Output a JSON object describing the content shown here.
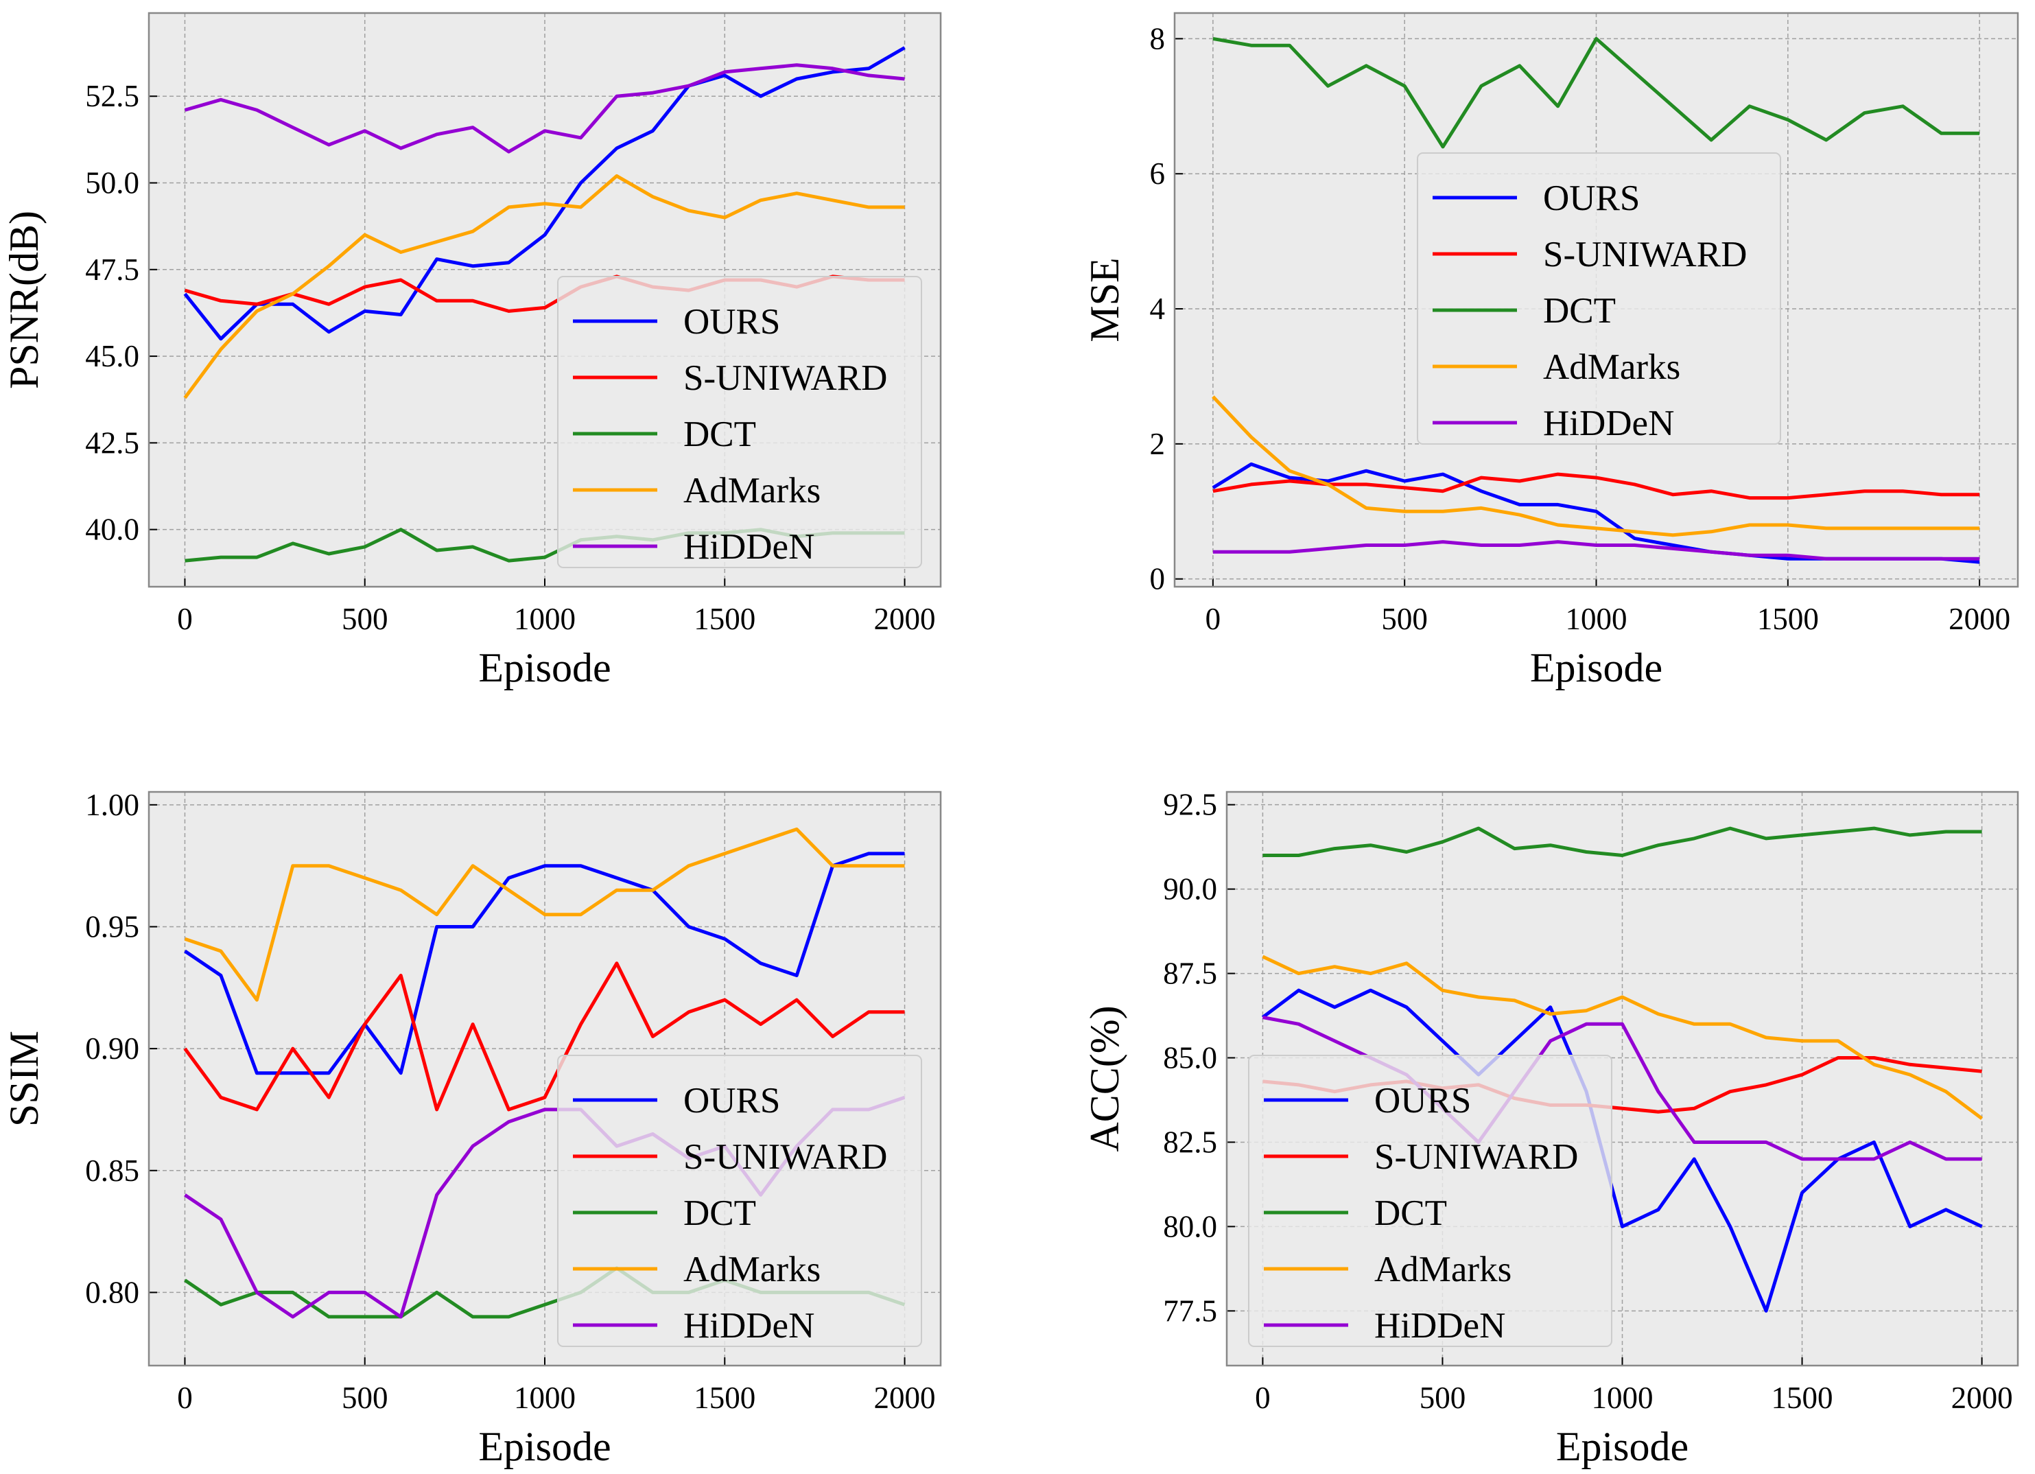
{
  "chart_data": [
    {
      "type": "line",
      "title": "",
      "xlabel": "Episode",
      "ylabel": "PSNR(dB)",
      "xlim": [
        -100,
        2100
      ],
      "ylim": [
        38.35,
        54.9
      ],
      "xticks": [
        0,
        500,
        1000,
        1500,
        2000
      ],
      "yticks": [
        40.0,
        42.5,
        45.0,
        47.5,
        50.0,
        52.5
      ],
      "ytick_labels": [
        "40.0",
        "42.5",
        "45.0",
        "47.5",
        "50.0",
        "52.5"
      ],
      "grid": true,
      "legend_placement": "lower-right",
      "x": [
        0,
        100,
        200,
        300,
        400,
        500,
        600,
        700,
        800,
        900,
        1000,
        1100,
        1200,
        1300,
        1400,
        1500,
        1600,
        1700,
        1800,
        1900,
        2000
      ],
      "series": [
        {
          "name": "OURS",
          "color": "#0000ff",
          "values": [
            46.8,
            45.5,
            46.5,
            46.5,
            45.7,
            46.3,
            46.2,
            47.8,
            47.6,
            47.7,
            48.5,
            50.0,
            51.0,
            51.5,
            52.8,
            53.1,
            52.5,
            53.0,
            53.2,
            53.3,
            53.9
          ]
        },
        {
          "name": "S-UNIWARD",
          "color": "#ff0000",
          "values": [
            46.9,
            46.6,
            46.5,
            46.8,
            46.5,
            47.0,
            47.2,
            46.6,
            46.6,
            46.3,
            46.4,
            47.0,
            47.3,
            47.0,
            46.9,
            47.2,
            47.2,
            47.0,
            47.3,
            47.2,
            47.2
          ]
        },
        {
          "name": "DCT",
          "color": "#228b22",
          "values": [
            39.1,
            39.2,
            39.2,
            39.6,
            39.3,
            39.5,
            40.0,
            39.4,
            39.5,
            39.1,
            39.2,
            39.7,
            39.8,
            39.7,
            39.9,
            39.9,
            40.0,
            39.8,
            39.9,
            39.9,
            39.9
          ]
        },
        {
          "name": "AdMarks",
          "color": "#ffa500",
          "values": [
            43.8,
            45.2,
            46.3,
            46.8,
            47.6,
            48.5,
            48.0,
            48.3,
            48.6,
            49.3,
            49.4,
            49.3,
            50.2,
            49.6,
            49.2,
            49.0,
            49.5,
            49.7,
            49.5,
            49.3,
            49.3
          ]
        },
        {
          "name": "HiDDeN",
          "color": "#9400d3",
          "values": [
            52.1,
            52.4,
            52.1,
            51.6,
            51.1,
            51.5,
            51.0,
            51.4,
            51.6,
            50.9,
            51.5,
            51.3,
            52.5,
            52.6,
            52.8,
            53.2,
            53.3,
            53.4,
            53.3,
            53.1,
            53.0
          ]
        }
      ]
    },
    {
      "type": "line",
      "title": "",
      "xlabel": "Episode",
      "ylabel": "MSE",
      "xlim": [
        -100,
        2100
      ],
      "ylim": [
        -0.115,
        8.38
      ],
      "xticks": [
        0,
        500,
        1000,
        1500,
        2000
      ],
      "yticks": [
        0,
        2,
        4,
        6,
        8
      ],
      "ytick_labels": [
        "0",
        "2",
        "4",
        "6",
        "8"
      ],
      "grid": true,
      "legend_placement": "center",
      "x": [
        0,
        100,
        200,
        300,
        400,
        500,
        600,
        700,
        800,
        900,
        1000,
        1100,
        1200,
        1300,
        1400,
        1500,
        1600,
        1700,
        1800,
        1900,
        2000
      ],
      "series": [
        {
          "name": "OURS",
          "color": "#0000ff",
          "values": [
            1.35,
            1.7,
            1.5,
            1.45,
            1.6,
            1.45,
            1.55,
            1.3,
            1.1,
            1.1,
            1.0,
            0.6,
            0.5,
            0.4,
            0.35,
            0.3,
            0.3,
            0.3,
            0.3,
            0.3,
            0.25
          ]
        },
        {
          "name": "S-UNIWARD",
          "color": "#ff0000",
          "values": [
            1.3,
            1.4,
            1.45,
            1.4,
            1.4,
            1.35,
            1.3,
            1.5,
            1.45,
            1.55,
            1.5,
            1.4,
            1.25,
            1.3,
            1.2,
            1.2,
            1.25,
            1.3,
            1.3,
            1.25,
            1.25
          ]
        },
        {
          "name": "DCT",
          "color": "#228b22",
          "values": [
            8.0,
            7.9,
            7.9,
            7.3,
            7.6,
            7.3,
            6.4,
            7.3,
            7.6,
            7.0,
            8.0,
            7.5,
            7.0,
            6.5,
            7.0,
            6.8,
            6.5,
            6.9,
            7.0,
            6.6,
            6.6
          ]
        },
        {
          "name": "AdMarks",
          "color": "#ffa500",
          "values": [
            2.7,
            2.1,
            1.6,
            1.4,
            1.05,
            1.0,
            1.0,
            1.05,
            0.95,
            0.8,
            0.75,
            0.7,
            0.65,
            0.7,
            0.8,
            0.8,
            0.75,
            0.75,
            0.75,
            0.75,
            0.75
          ]
        },
        {
          "name": "HiDDeN",
          "color": "#9400d3",
          "values": [
            0.4,
            0.4,
            0.4,
            0.45,
            0.5,
            0.5,
            0.55,
            0.5,
            0.5,
            0.55,
            0.5,
            0.5,
            0.45,
            0.4,
            0.35,
            0.35,
            0.3,
            0.3,
            0.3,
            0.3,
            0.3
          ]
        }
      ]
    },
    {
      "type": "line",
      "title": "",
      "xlabel": "Episode",
      "ylabel": "SSIM",
      "xlim": [
        -100,
        2100
      ],
      "ylim": [
        0.77,
        1.0053
      ],
      "xticks": [
        0,
        500,
        1000,
        1500,
        2000
      ],
      "yticks": [
        0.8,
        0.85,
        0.9,
        0.95,
        1.0
      ],
      "ytick_labels": [
        "0.80",
        "0.85",
        "0.90",
        "0.95",
        "1.00"
      ],
      "grid": true,
      "legend_placement": "lower-right",
      "x": [
        0,
        100,
        200,
        300,
        400,
        500,
        600,
        700,
        800,
        900,
        1000,
        1100,
        1200,
        1300,
        1400,
        1500,
        1600,
        1700,
        1800,
        1900,
        2000
      ],
      "series": [
        {
          "name": "OURS",
          "color": "#0000ff",
          "values": [
            0.94,
            0.93,
            0.89,
            0.89,
            0.89,
            0.91,
            0.89,
            0.95,
            0.95,
            0.97,
            0.975,
            0.975,
            0.97,
            0.965,
            0.95,
            0.945,
            0.935,
            0.93,
            0.975,
            0.98,
            0.98
          ]
        },
        {
          "name": "S-UNIWARD",
          "color": "#ff0000",
          "values": [
            0.9,
            0.88,
            0.875,
            0.9,
            0.88,
            0.91,
            0.93,
            0.875,
            0.91,
            0.875,
            0.88,
            0.91,
            0.935,
            0.905,
            0.915,
            0.92,
            0.91,
            0.92,
            0.905,
            0.915,
            0.915
          ]
        },
        {
          "name": "DCT",
          "color": "#228b22",
          "values": [
            0.805,
            0.795,
            0.8,
            0.8,
            0.79,
            0.79,
            0.79,
            0.8,
            0.79,
            0.79,
            0.795,
            0.8,
            0.81,
            0.8,
            0.8,
            0.805,
            0.8,
            0.8,
            0.8,
            0.8,
            0.795
          ]
        },
        {
          "name": "AdMarks",
          "color": "#ffa500",
          "values": [
            0.945,
            0.94,
            0.92,
            0.975,
            0.975,
            0.97,
            0.965,
            0.955,
            0.975,
            0.965,
            0.955,
            0.955,
            0.965,
            0.965,
            0.975,
            0.98,
            0.985,
            0.99,
            0.975,
            0.975,
            0.975
          ]
        },
        {
          "name": "HiDDeN",
          "color": "#9400d3",
          "values": [
            0.84,
            0.83,
            0.8,
            0.79,
            0.8,
            0.8,
            0.79,
            0.84,
            0.86,
            0.87,
            0.875,
            0.875,
            0.86,
            0.865,
            0.855,
            0.86,
            0.84,
            0.86,
            0.875,
            0.875,
            0.88
          ]
        }
      ]
    },
    {
      "type": "line",
      "title": "",
      "xlabel": "Episode",
      "ylabel": "ACC(%)",
      "xlim": [
        -100,
        2100
      ],
      "ylim": [
        75.88,
        92.88
      ],
      "xticks": [
        0,
        500,
        1000,
        1500,
        2000
      ],
      "yticks": [
        77.5,
        80.0,
        82.5,
        85.0,
        87.5,
        90.0,
        92.5
      ],
      "ytick_labels": [
        "77.5",
        "80.0",
        "82.5",
        "85.0",
        "87.5",
        "90.0",
        "92.5"
      ],
      "grid": true,
      "legend_placement": "lower-left",
      "x": [
        0,
        100,
        200,
        300,
        400,
        500,
        600,
        700,
        800,
        900,
        1000,
        1100,
        1200,
        1300,
        1400,
        1500,
        1600,
        1700,
        1800,
        1900,
        2000
      ],
      "series": [
        {
          "name": "OURS",
          "color": "#0000ff",
          "values": [
            86.2,
            87.0,
            86.5,
            87.0,
            86.5,
            85.5,
            84.5,
            85.5,
            86.5,
            84.0,
            80.0,
            80.5,
            82.0,
            80.0,
            77.5,
            81.0,
            82.0,
            82.5,
            80.0,
            80.5,
            80.0
          ]
        },
        {
          "name": "S-UNIWARD",
          "color": "#ff0000",
          "values": [
            84.3,
            84.2,
            84.0,
            84.2,
            84.3,
            84.1,
            84.2,
            83.8,
            83.6,
            83.6,
            83.5,
            83.4,
            83.5,
            84.0,
            84.2,
            84.5,
            85.0,
            85.0,
            84.8,
            84.7,
            84.6
          ]
        },
        {
          "name": "DCT",
          "color": "#228b22",
          "values": [
            91.0,
            91.0,
            91.2,
            91.3,
            91.1,
            91.4,
            91.8,
            91.2,
            91.3,
            91.1,
            91.0,
            91.3,
            91.5,
            91.8,
            91.5,
            91.6,
            91.7,
            91.8,
            91.6,
            91.7,
            91.7
          ]
        },
        {
          "name": "AdMarks",
          "color": "#ffa500",
          "values": [
            88.0,
            87.5,
            87.7,
            87.5,
            87.8,
            87.0,
            86.8,
            86.7,
            86.3,
            86.4,
            86.8,
            86.3,
            86.0,
            86.0,
            85.6,
            85.5,
            85.5,
            84.8,
            84.5,
            84.0,
            83.2
          ]
        },
        {
          "name": "HiDDeN",
          "color": "#9400d3",
          "values": [
            86.2,
            86.0,
            85.5,
            85.0,
            84.5,
            83.5,
            82.5,
            84.0,
            85.5,
            86.0,
            86.0,
            84.0,
            82.5,
            82.5,
            82.5,
            82.0,
            82.0,
            82.0,
            82.5,
            82.0,
            82.0
          ]
        }
      ]
    }
  ]
}
